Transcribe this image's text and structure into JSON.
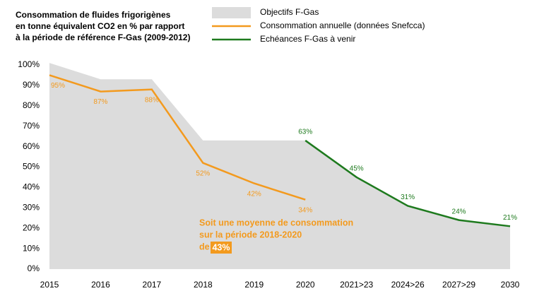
{
  "chart_data": {
    "type": "area-line",
    "title": [
      "Consommation de fluides frigorigènes",
      "en tonne équivalent CO2 en % par rapport",
      "à la période de référence F-Gas (2009-2012)"
    ],
    "categories": [
      "2015",
      "2016",
      "2017",
      "2018",
      "2019",
      "2020",
      "2021>23",
      "2024>26",
      "2027>29",
      "2030"
    ],
    "series": [
      {
        "name": "Objectifs F-Gas",
        "kind": "area",
        "color": "#dcdcdc",
        "values": [
          101,
          93,
          93,
          63,
          63,
          63,
          45,
          31,
          24,
          21
        ]
      },
      {
        "name": "Consommation annuelle (données Snefcca)",
        "kind": "line",
        "color": "#f39a1e",
        "values": [
          95,
          87,
          88,
          52,
          42,
          34,
          null,
          null,
          null,
          null
        ],
        "value_labels": [
          "95%",
          "87%",
          "88%",
          "52%",
          "42%",
          "34%",
          null,
          null,
          null,
          null
        ]
      },
      {
        "name": "Echéances F-Gas à venir",
        "kind": "line",
        "color": "#1e7a1e",
        "values": [
          null,
          null,
          null,
          null,
          null,
          63,
          45,
          31,
          24,
          21
        ],
        "value_labels": [
          null,
          null,
          null,
          null,
          null,
          "63%",
          "45%",
          "31%",
          "24%",
          "21%"
        ]
      }
    ],
    "ylim": [
      0,
      100
    ],
    "yticks": [
      {
        "value": 0,
        "label": "0%"
      },
      {
        "value": 10,
        "label": "10%"
      },
      {
        "value": 20,
        "label": "20%"
      },
      {
        "value": 30,
        "label": "30%"
      },
      {
        "value": 40,
        "label": "40%"
      },
      {
        "value": 50,
        "label": "50%"
      },
      {
        "value": 60,
        "label": "60%"
      },
      {
        "value": 70,
        "label": "70%"
      },
      {
        "value": 80,
        "label": "80%"
      },
      {
        "value": 90,
        "label": "90%"
      },
      {
        "value": 100,
        "label": "100%"
      }
    ],
    "annotation": {
      "lines": [
        "Soit une moyenne de consommation",
        "sur la période 2018-2020",
        "de"
      ],
      "highlight": "43%",
      "color": "#f39a1e"
    },
    "legend": "top-right"
  }
}
